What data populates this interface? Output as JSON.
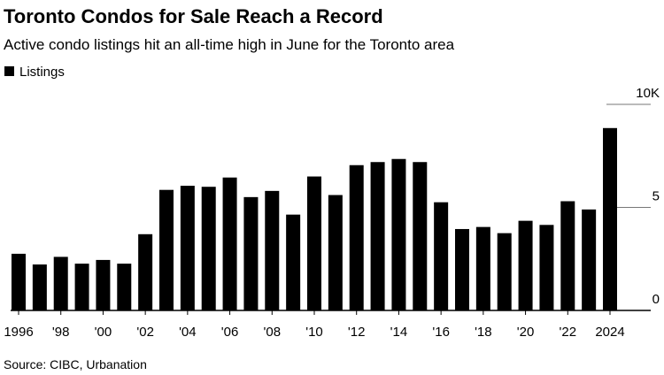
{
  "chart_data": {
    "type": "bar",
    "title": "Toronto Condos for Sale Reach a Record",
    "subtitle": "Active condo listings hit an all-time high in June for the Toronto area",
    "source": "Source: CIBC, Urbanation",
    "legend": "top-left",
    "series": [
      {
        "name": "Listings",
        "color": "#000000",
        "values": [
          2.75,
          2.23,
          2.6,
          2.27,
          2.45,
          2.27,
          3.7,
          5.85,
          6.05,
          6.0,
          6.45,
          5.5,
          5.8,
          4.65,
          6.5,
          5.6,
          7.05,
          7.2,
          7.35,
          7.2,
          5.25,
          3.95,
          4.05,
          3.75,
          4.35,
          4.15,
          5.3,
          4.9,
          8.85
        ]
      }
    ],
    "categories": [
      "1996",
      null,
      "'98",
      null,
      "'00",
      null,
      "'02",
      null,
      "'04",
      null,
      "'06",
      null,
      "'08",
      null,
      "'10",
      null,
      "'12",
      null,
      "'14",
      null,
      "'16",
      null,
      "'18",
      null,
      "'20",
      null,
      "'22",
      null,
      "2024"
    ],
    "ylim": [
      0,
      10
    ],
    "yticks": [
      0,
      5,
      {
        "value": 10,
        "label": "10K"
      }
    ],
    "grid": true
  }
}
